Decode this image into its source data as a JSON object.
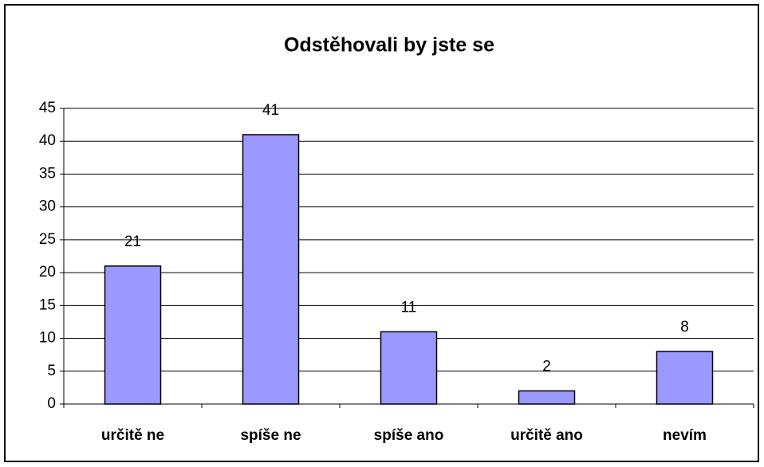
{
  "chart_data": {
    "type": "bar",
    "title": "Odstěhovali by jste se",
    "categories": [
      "určitě ne",
      "spíše ne",
      "spíše ano",
      "určitě ano",
      "nevím"
    ],
    "values": [
      21,
      41,
      11,
      2,
      8
    ],
    "color": "#9999ff",
    "ylim": [
      0,
      45
    ],
    "yticks": [
      0,
      5,
      10,
      15,
      20,
      25,
      30,
      35,
      40,
      45
    ],
    "grid": true
  }
}
